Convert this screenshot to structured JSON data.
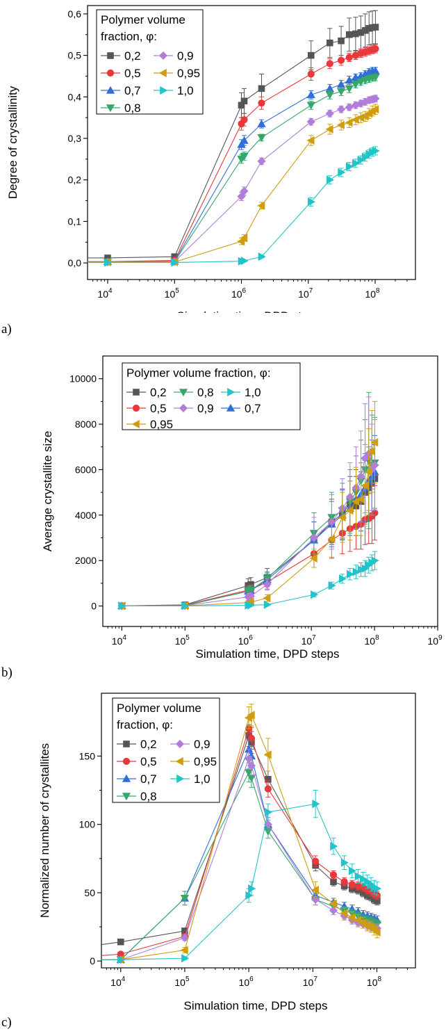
{
  "colors": {
    "0,2": "#555555",
    "0,5": "#e8383b",
    "0,7": "#2f6fd6",
    "0,8": "#37a66a",
    "0,9": "#b07ed8",
    "0,95": "#cf9d0f",
    "1,0": "#22c3c9"
  },
  "panels": [
    {
      "letter": "a)",
      "legend": {
        "title_lines": [
          "Polymer volume",
          "fraction, φ:"
        ],
        "columns": 2,
        "order": [
          "0,2",
          "0,9",
          "0,5",
          "0,95",
          "0,7",
          "1,0",
          "0,8"
        ]
      }
    },
    {
      "letter": "b)",
      "legend": {
        "title_lines": [
          "Polymer volume fraction,  φ:"
        ],
        "columns": 3,
        "order": [
          "0,2",
          "0,8",
          "1,0",
          "0,5",
          "0,9",
          "0,7",
          "0,95"
        ]
      }
    },
    {
      "letter": "c)",
      "legend": {
        "title_lines": [
          "Polymer volume",
          "fraction, φ:"
        ],
        "columns": 2,
        "order": [
          "0,2",
          "0,9",
          "0,5",
          "0,95",
          "0,7",
          "1,0",
          "0,8"
        ]
      }
    }
  ],
  "chart_data": [
    {
      "type": "line",
      "title": "",
      "xlabel": "Simulation time, DPD steps",
      "ylabel": "Degree of crystallinity",
      "xscale": "log",
      "xlim": [
        5000,
        400000000
      ],
      "ylim": [
        -0.04,
        0.62
      ],
      "yticks": [
        0.0,
        0.1,
        0.2,
        0.3,
        0.4,
        0.5,
        0.6
      ],
      "ytick_labels": [
        "0,0",
        "0,1",
        "0,2",
        "0,3",
        "0,4",
        "0,5",
        "0,6"
      ],
      "xticks": [
        10000,
        100000,
        1000000,
        10000000,
        100000000
      ],
      "xtick_labels": [
        [
          "10",
          "4"
        ],
        [
          "10",
          "5"
        ],
        [
          "10",
          "6"
        ],
        [
          "10",
          "7"
        ],
        [
          "10",
          "8"
        ]
      ],
      "x": [
        0,
        10000,
        100000,
        1000000,
        1100000,
        2000000,
        11000000,
        21000000,
        31000000,
        41000000,
        51000000,
        61000000,
        71000000,
        81000000,
        91000000,
        101000000
      ],
      "series": [
        {
          "name": "0,2",
          "marker": "square",
          "values": [
            0.012,
            0.012,
            0.015,
            0.38,
            0.39,
            0.42,
            0.5,
            0.53,
            0.535,
            0.55,
            0.552,
            0.555,
            0.56,
            0.565,
            0.567,
            0.568
          ],
          "err": [
            0,
            0,
            0,
            0.03,
            0.03,
            0.035,
            0.035,
            0.035,
            0.035,
            0.04,
            0.04,
            0.04,
            0.04,
            0.04,
            0.04,
            0.04
          ]
        },
        {
          "name": "0,5",
          "marker": "circle",
          "values": [
            0.003,
            0.003,
            0.006,
            0.335,
            0.345,
            0.385,
            0.455,
            0.48,
            0.488,
            0.495,
            0.5,
            0.505,
            0.508,
            0.511,
            0.514,
            0.516
          ],
          "err": [
            0,
            0,
            0,
            0.015,
            0.015,
            0.015,
            0.015,
            0.012,
            0.012,
            0.01,
            0.01,
            0.01,
            0.01,
            0.01,
            0.01,
            0.01
          ]
        },
        {
          "name": "0,7",
          "marker": "triangle-up",
          "values": [
            0.003,
            0.003,
            0.004,
            0.285,
            0.295,
            0.335,
            0.405,
            0.42,
            0.43,
            0.44,
            0.447,
            0.45,
            0.455,
            0.46,
            0.463,
            0.463
          ],
          "err": [
            0,
            0,
            0,
            0.012,
            0.012,
            0.01,
            0.01,
            0.01,
            0.01,
            0.01,
            0.008,
            0.008,
            0.008,
            0.008,
            0.008,
            0.008
          ]
        },
        {
          "name": "0,8",
          "marker": "triangle-down",
          "values": [
            0.002,
            0.002,
            0.003,
            0.25,
            0.257,
            0.302,
            0.38,
            0.405,
            0.413,
            0.42,
            0.43,
            0.436,
            0.44,
            0.443,
            0.446,
            0.447
          ],
          "err": [
            0,
            0,
            0,
            0.01,
            0.01,
            0.008,
            0.01,
            0.01,
            0.01,
            0.01,
            0.008,
            0.008,
            0.008,
            0.008,
            0.008,
            0.008
          ]
        },
        {
          "name": "0,9",
          "marker": "diamond",
          "values": [
            0.002,
            0.002,
            0.003,
            0.16,
            0.173,
            0.245,
            0.34,
            0.36,
            0.37,
            0.375,
            0.38,
            0.384,
            0.388,
            0.392,
            0.394,
            0.396
          ],
          "err": [
            0,
            0,
            0,
            0.01,
            0.01,
            0.008,
            0.008,
            0.008,
            0.008,
            0.008,
            0.008,
            0.008,
            0.008,
            0.008,
            0.008,
            0.008
          ]
        },
        {
          "name": "0,95",
          "marker": "triangle-left",
          "values": [
            0.002,
            0.002,
            0.002,
            0.052,
            0.06,
            0.138,
            0.295,
            0.322,
            0.332,
            0.338,
            0.345,
            0.35,
            0.353,
            0.36,
            0.366,
            0.37
          ],
          "err": [
            0,
            0,
            0,
            0.008,
            0.008,
            0.008,
            0.012,
            0.012,
            0.012,
            0.012,
            0.012,
            0.012,
            0.012,
            0.012,
            0.012,
            0.012
          ]
        },
        {
          "name": "1,0",
          "marker": "triangle-right",
          "values": [
            0.001,
            0.001,
            0.001,
            0.004,
            0.005,
            0.015,
            0.147,
            0.2,
            0.218,
            0.232,
            0.24,
            0.248,
            0.255,
            0.262,
            0.267,
            0.27
          ],
          "err": [
            0,
            0,
            0,
            0.002,
            0.002,
            0.003,
            0.01,
            0.01,
            0.01,
            0.01,
            0.01,
            0.01,
            0.01,
            0.01,
            0.01,
            0.01
          ]
        }
      ]
    },
    {
      "type": "line",
      "title": "",
      "xlabel": "Simulation time, DPD steps",
      "ylabel": "Average crystallite size",
      "xscale": "log",
      "xlim": [
        5000,
        1000000000
      ],
      "ylim": [
        -900,
        11000
      ],
      "yticks": [
        0,
        2000,
        4000,
        6000,
        8000,
        10000
      ],
      "ytick_labels": [
        "0",
        "2000",
        "4000",
        "6000",
        "8000",
        "10000"
      ],
      "xticks": [
        10000,
        100000,
        1000000,
        10000000,
        100000000,
        1000000000
      ],
      "xtick_labels": [
        [
          "10",
          "4"
        ],
        [
          "10",
          "5"
        ],
        [
          "10",
          "6"
        ],
        [
          "10",
          "7"
        ],
        [
          "10",
          "8"
        ],
        [
          "10",
          "9"
        ]
      ],
      "x": [
        10000,
        100000,
        1000000,
        1100000,
        2000000,
        11000000,
        21000000,
        31000000,
        41000000,
        51000000,
        61000000,
        71000000,
        81000000,
        91000000,
        101000000
      ],
      "series": [
        {
          "name": "0,2",
          "marker": "square",
          "values": [
            10,
            50,
            900,
            950,
            1250,
            2900,
            3700,
            4050,
            4500,
            4400,
            4600,
            5000,
            5200,
            5400,
            5600
          ],
          "err": [
            0,
            0,
            300,
            300,
            400,
            800,
            1000,
            1100,
            1200,
            1300,
            1300,
            1400,
            1400,
            1500,
            1500
          ]
        },
        {
          "name": "0,5",
          "marker": "circle",
          "values": [
            10,
            40,
            700,
            730,
            1050,
            2300,
            2900,
            3200,
            3400,
            3500,
            3600,
            3800,
            3850,
            3950,
            4100
          ],
          "err": [
            0,
            0,
            200,
            200,
            300,
            600,
            800,
            900,
            1000,
            1000,
            1100,
            1100,
            1100,
            1200,
            1200
          ]
        },
        {
          "name": "0,7",
          "marker": "triangle-up",
          "values": [
            10,
            30,
            650,
            680,
            1150,
            2900,
            3600,
            4000,
            4300,
            4700,
            4900,
            5200,
            5500,
            5700,
            5900
          ],
          "err": [
            0,
            0,
            200,
            200,
            300,
            800,
            1000,
            1100,
            1200,
            1300,
            1400,
            1500,
            1500,
            1600,
            1600
          ]
        },
        {
          "name": "0,8",
          "marker": "triangle-down",
          "values": [
            5,
            20,
            650,
            700,
            1200,
            3200,
            3900,
            4200,
            4600,
            5000,
            5500,
            6000,
            6400,
            6200,
            6300
          ],
          "err": [
            0,
            0,
            200,
            200,
            300,
            900,
            1100,
            1200,
            1400,
            1600,
            1800,
            2200,
            3000,
            2200,
            2000
          ]
        },
        {
          "name": "0,9",
          "marker": "diamond",
          "values": [
            5,
            15,
            400,
            430,
            950,
            3000,
            3700,
            4300,
            4800,
            5200,
            5700,
            6500,
            6700,
            6000,
            6200
          ],
          "err": [
            0,
            0,
            150,
            150,
            250,
            900,
            1200,
            1300,
            1500,
            1800,
            2000,
            2400,
            2500,
            2000,
            2000
          ]
        },
        {
          "name": "0,95",
          "marker": "triangle-left",
          "values": [
            5,
            10,
            150,
            170,
            350,
            2100,
            2950,
            3900,
            4200,
            4600,
            4700,
            5300,
            5900,
            6800,
            7200
          ],
          "err": [
            0,
            0,
            80,
            80,
            150,
            400,
            800,
            1100,
            1300,
            1500,
            1600,
            1800,
            1900,
            1800,
            1800
          ]
        },
        {
          "name": "1,0",
          "marker": "triangle-right",
          "values": [
            5,
            5,
            30,
            35,
            60,
            500,
            900,
            1200,
            1400,
            1500,
            1600,
            1650,
            1800,
            1900,
            2000
          ],
          "err": [
            0,
            0,
            20,
            20,
            30,
            100,
            150,
            200,
            250,
            300,
            300,
            350,
            350,
            350,
            400
          ]
        }
      ]
    },
    {
      "type": "line",
      "title": "",
      "xlabel": "Simulation time, DPD steps",
      "ylabel": "Normalized number of crystallites",
      "xscale": "log",
      "xlim": [
        5000,
        400000000
      ],
      "ylim": [
        -5,
        196
      ],
      "yticks": [
        0,
        50,
        100,
        150
      ],
      "ytick_labels": [
        "0",
        "50",
        "100",
        "150"
      ],
      "xticks": [
        10000,
        100000,
        1000000,
        10000000,
        100000000
      ],
      "xtick_labels": [
        [
          "10",
          "4"
        ],
        [
          "10",
          "5"
        ],
        [
          "10",
          "6"
        ],
        [
          "10",
          "7"
        ],
        [
          "10",
          "8"
        ]
      ],
      "x": [
        0,
        10000,
        100000,
        1000000,
        1100000,
        2000000,
        11000000,
        21000000,
        31000000,
        41000000,
        51000000,
        61000000,
        71000000,
        81000000,
        91000000,
        101000000
      ],
      "series": [
        {
          "name": "0,2",
          "marker": "square",
          "values": [
            12,
            14,
            22,
            165,
            160,
            133,
            70,
            58,
            55,
            53,
            52,
            50,
            48,
            47,
            45,
            44
          ],
          "err": [
            0,
            0,
            2,
            8,
            8,
            6,
            4,
            3,
            3,
            3,
            3,
            3,
            3,
            3,
            3,
            3
          ]
        },
        {
          "name": "0,5",
          "marker": "circle",
          "values": [
            4,
            5,
            18,
            170,
            163,
            126,
            73,
            63,
            58,
            56,
            55,
            54,
            52,
            51,
            49,
            48
          ],
          "err": [
            0,
            0,
            2,
            8,
            8,
            6,
            4,
            3,
            3,
            3,
            3,
            3,
            3,
            3,
            3,
            3
          ]
        },
        {
          "name": "0,7",
          "marker": "triangle-up",
          "values": [
            1,
            1,
            46,
            155,
            150,
            100,
            48,
            43,
            40,
            38,
            36,
            34,
            33,
            32,
            31,
            30
          ],
          "err": [
            0,
            0,
            5,
            7,
            7,
            5,
            4,
            3,
            3,
            3,
            3,
            3,
            3,
            3,
            3,
            3
          ]
        },
        {
          "name": "0,8",
          "marker": "triangle-down",
          "values": [
            1,
            1,
            46,
            138,
            134,
            95,
            45,
            40,
            37,
            35,
            33,
            31,
            30,
            29,
            28,
            27
          ],
          "err": [
            0,
            0,
            5,
            7,
            7,
            5,
            4,
            3,
            3,
            3,
            3,
            3,
            3,
            3,
            3,
            3
          ]
        },
        {
          "name": "0,9",
          "marker": "diamond",
          "values": [
            1,
            1,
            17,
            148,
            143,
            100,
            45,
            37,
            33,
            30,
            28,
            27,
            26,
            25,
            24,
            24
          ],
          "err": [
            0,
            0,
            2,
            7,
            7,
            5,
            4,
            3,
            3,
            3,
            3,
            3,
            3,
            3,
            3,
            3
          ]
        },
        {
          "name": "0,95",
          "marker": "triangle-left",
          "values": [
            1,
            1,
            8,
            178,
            180,
            151,
            52,
            42,
            35,
            32,
            30,
            28,
            26,
            25,
            23,
            21
          ],
          "err": [
            0,
            0,
            2,
            8,
            8,
            12,
            6,
            4,
            4,
            4,
            4,
            4,
            4,
            4,
            4,
            4
          ]
        },
        {
          "name": "1,0",
          "marker": "triangle-right",
          "values": [
            1,
            1,
            2,
            48,
            53,
            109,
            115,
            84,
            72,
            66,
            62,
            60,
            58,
            56,
            54,
            53
          ],
          "err": [
            0,
            0,
            1,
            5,
            5,
            6,
            10,
            6,
            5,
            5,
            5,
            5,
            5,
            5,
            5,
            5
          ]
        }
      ]
    }
  ]
}
